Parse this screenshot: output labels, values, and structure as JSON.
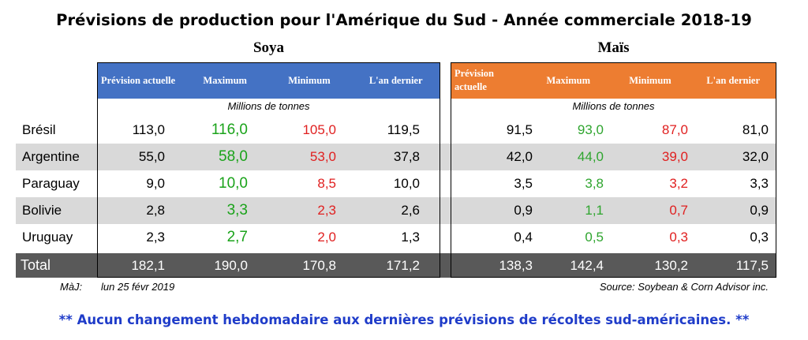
{
  "title": "Prévisions de production pour l'Amérique du Sud - Année commerciale 2018-19",
  "soya": {
    "title": "Soya",
    "headers": [
      "Prévision actuelle",
      "Maximum",
      "Minimum",
      "L'an dernier"
    ],
    "unit": "Millions de tonnes",
    "color": "#4472c4"
  },
  "mais": {
    "title": "Maïs",
    "headers": [
      "Prévision actuelle",
      "Maximum",
      "Minimum",
      "L'an dernier"
    ],
    "unit": "Millions de tonnes",
    "color": "#ed7d31"
  },
  "rows": [
    {
      "country": "Brésil",
      "soya": [
        "113,0",
        "116,0",
        "105,0",
        "119,5"
      ],
      "mais": [
        "91,5",
        "93,0",
        "87,0",
        "81,0"
      ]
    },
    {
      "country": "Argentine",
      "soya": [
        "55,0",
        "58,0",
        "53,0",
        "37,8"
      ],
      "mais": [
        "42,0",
        "44,0",
        "39,0",
        "32,0"
      ]
    },
    {
      "country": "Paraguay",
      "soya": [
        "9,0",
        "10,0",
        "8,5",
        "10,0"
      ],
      "mais": [
        "3,5",
        "3,8",
        "3,2",
        "3,3"
      ]
    },
    {
      "country": "Bolivie",
      "soya": [
        "2,8",
        "3,3",
        "2,3",
        "2,6"
      ],
      "mais": [
        "0,9",
        "1,1",
        "0,7",
        "0,9"
      ]
    },
    {
      "country": "Uruguay",
      "soya": [
        "2,3",
        "2,7",
        "2,0",
        "1,3"
      ],
      "mais": [
        "0,4",
        "0,5",
        "0,3",
        "0,3"
      ]
    }
  ],
  "total": {
    "label": "Total",
    "soya": [
      "182,1",
      "190,0",
      "170,8",
      "171,2"
    ],
    "mais": [
      "138,3",
      "142,4",
      "130,2",
      "117,5"
    ]
  },
  "footer": {
    "maj_label": "MàJ:",
    "date": "lun 25 févr 2019",
    "source": "Source:  Soybean & Corn Advisor inc."
  },
  "note": "** Aucun changement hebdomadaire aux dernières prévisions de récoltes sud-américaines. **",
  "colors": {
    "max": "#1aa31a",
    "min": "#e02020",
    "total_bg": "#595959",
    "shade": "#d9d9d9",
    "note": "#1f3cc9"
  }
}
